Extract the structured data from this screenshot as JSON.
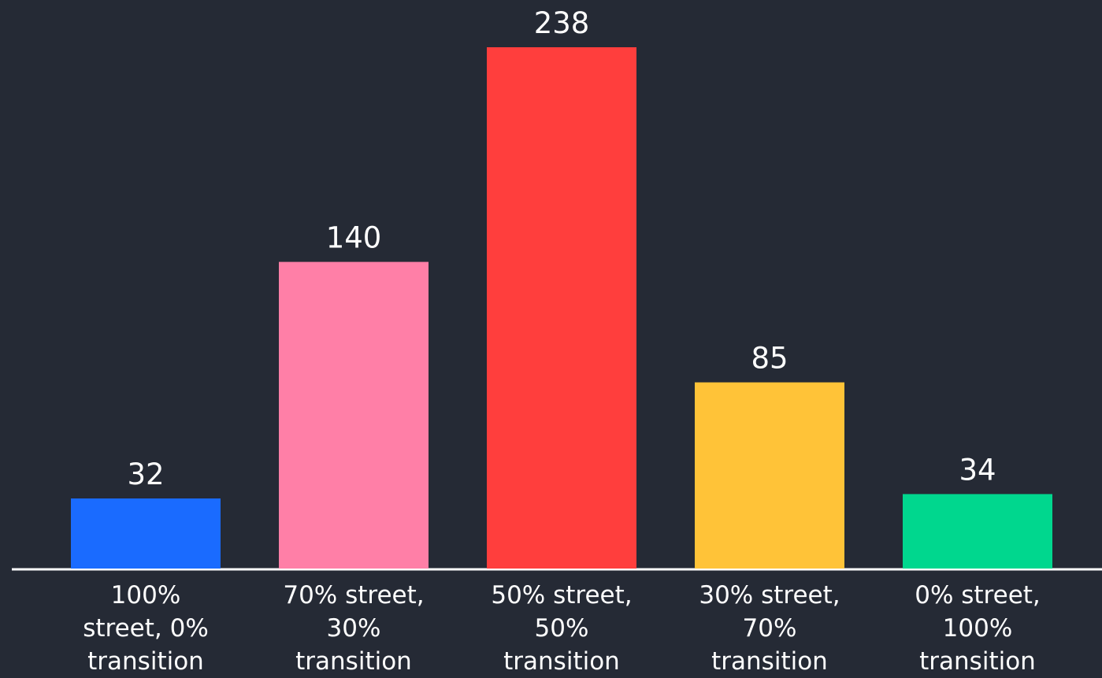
{
  "chart_data": {
    "type": "bar",
    "categories": [
      "100% street, 0% transition",
      "70% street, 30% transition",
      "50% street, 50% transition",
      "30% street, 70% transition",
      "0% street, 100% transition"
    ],
    "values": [
      32,
      140,
      238,
      85,
      34
    ],
    "colors": [
      "#1a6bff",
      "#ff7fa7",
      "#ff3e3d",
      "#ffc338",
      "#00d78e"
    ]
  }
}
